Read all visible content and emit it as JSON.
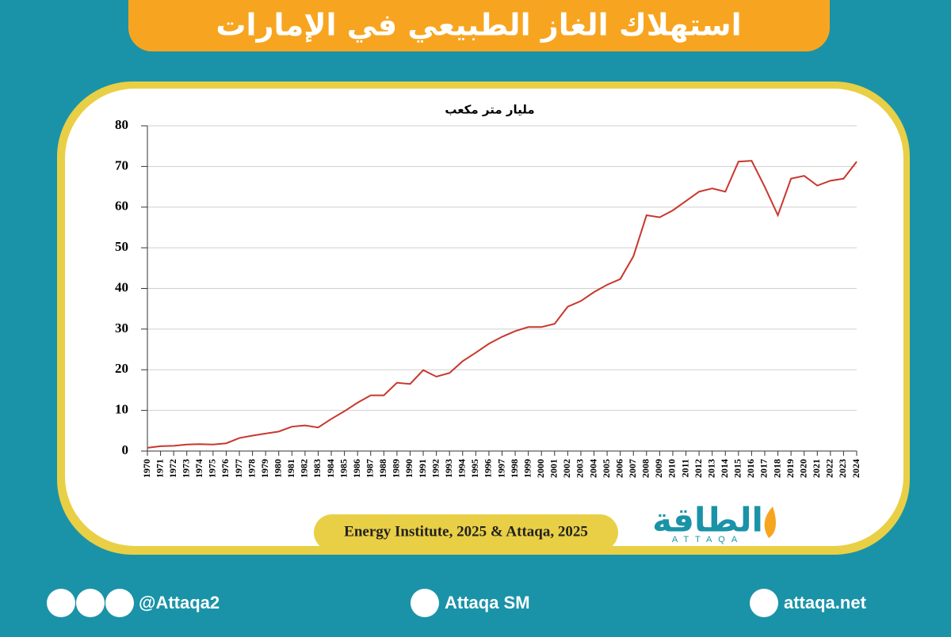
{
  "header": {
    "title": "استهلاك الغاز الطبيعي في الإمارات"
  },
  "chart_data": {
    "type": "line",
    "y_label": "مليار متر مكعب",
    "x": [
      1970,
      1971,
      1972,
      1973,
      1974,
      1975,
      1976,
      1977,
      1978,
      1979,
      1980,
      1981,
      1982,
      1983,
      1984,
      1985,
      1986,
      1987,
      1988,
      1989,
      1990,
      1991,
      1992,
      1993,
      1994,
      1995,
      1996,
      1997,
      1998,
      1999,
      2000,
      2001,
      2002,
      2003,
      2004,
      2005,
      2006,
      2007,
      2008,
      2009,
      2010,
      2011,
      2012,
      2013,
      2014,
      2015,
      2016,
      2017,
      2018,
      2019,
      2020,
      2021,
      2022,
      2023,
      2024
    ],
    "series": [
      {
        "name": "استهلاك الغاز الطبيعي",
        "color": "#c8372d",
        "values": [
          0.8,
          1.2,
          1.3,
          1.6,
          1.7,
          1.6,
          1.9,
          3.2,
          3.8,
          4.3,
          4.8,
          6.0,
          6.3,
          5.8,
          7.9,
          9.8,
          11.9,
          13.7,
          13.7,
          16.8,
          16.5,
          19.9,
          18.3,
          19.2,
          22.1,
          24.2,
          26.4,
          28.1,
          29.5,
          30.5,
          30.5,
          31.3,
          35.5,
          36.9,
          39.1,
          40.9,
          42.3,
          47.9,
          58.0,
          57.5,
          59.2,
          61.5,
          63.8,
          64.6,
          63.8,
          71.2,
          71.4,
          65.0,
          58.0,
          67.0,
          67.7,
          65.3,
          66.5,
          67.0,
          71.2
        ]
      }
    ],
    "xlim": [
      1970,
      2024
    ],
    "ylim": [
      0,
      80
    ],
    "yticks": [
      0,
      10,
      20,
      30,
      40,
      50,
      60,
      70,
      80
    ],
    "grid": true
  },
  "source": "Energy Institute, 2025 & Attaqa, 2025",
  "logo": {
    "name": "الطاقة",
    "latin": "ATTAQA"
  },
  "footer": {
    "social": "@Attaqa2",
    "youtube": "Attaqa SM",
    "website": "attaqa.net"
  }
}
